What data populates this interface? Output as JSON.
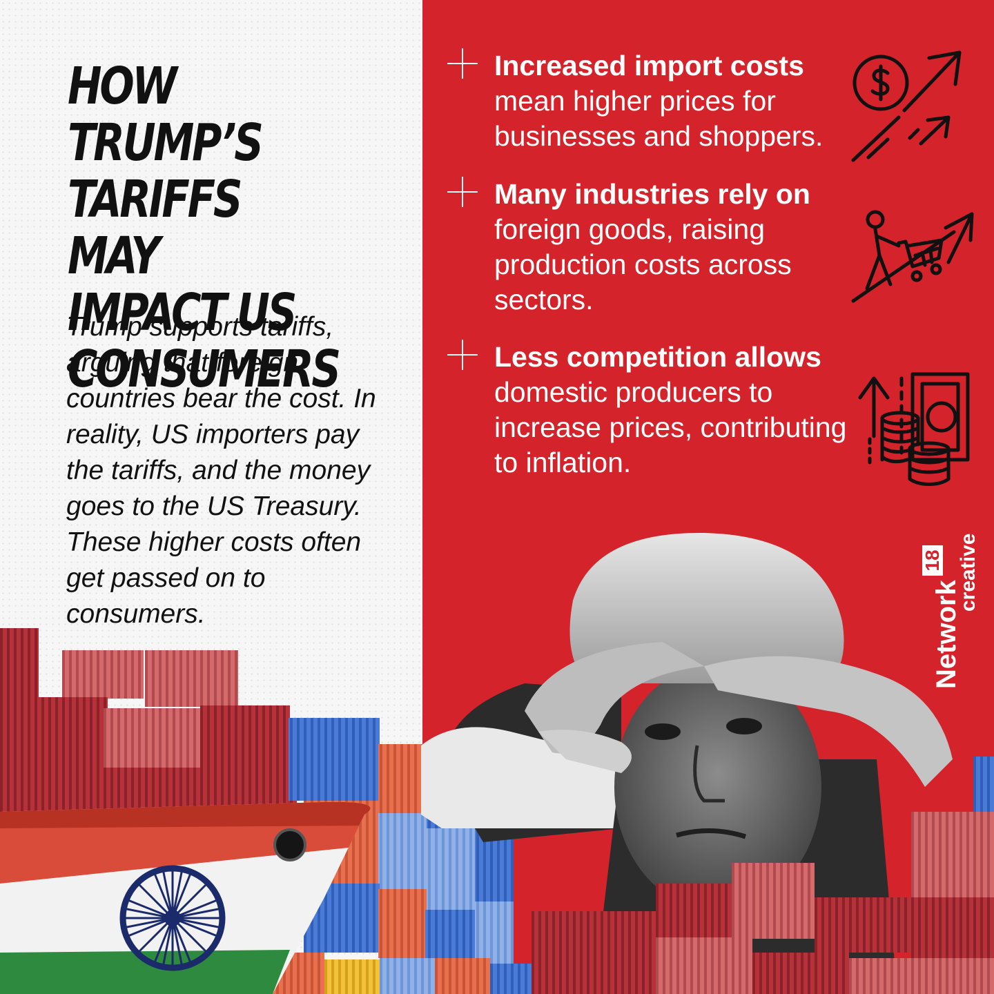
{
  "headline": "HOW TRUMP’S TARIFFS MAY IMPACT US CONSUMERS",
  "intro": "Trump supports tariffs, arguing that foreign countries bear the cost. In reality, US importers pay the tariffs, and the money goes to the US Treasury. These higher costs often get passed on to consumers.",
  "points": [
    {
      "bold": "Increased import costs",
      "rest": " mean higher prices for businesses and shoppers.",
      "icon": "price-increase-arrows-icon"
    },
    {
      "bold": "Many industries rely on",
      "rest": " foreign goods, raising production costs across sectors.",
      "icon": "person-pushing-cart-uphill-icon"
    },
    {
      "bold": "Less competition allows",
      "rest": " domestic producers to increase prices, contributing to inflation.",
      "icon": "rising-money-coins-icon"
    }
  ],
  "logo": {
    "brand": "Network",
    "number": "18",
    "sub": "creative"
  },
  "colors": {
    "red_panel": "#d4232b",
    "ink": "#111111",
    "white": "#ffffff"
  }
}
